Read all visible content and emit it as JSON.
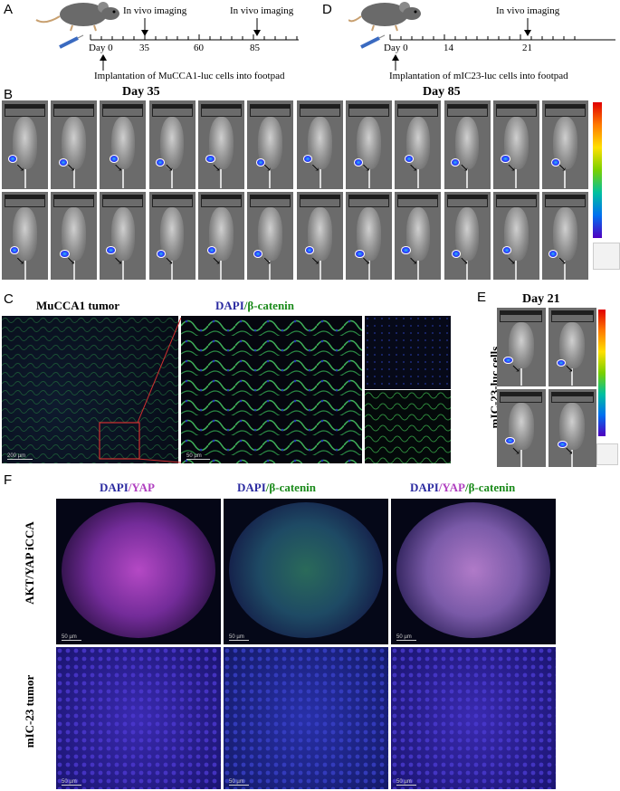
{
  "panels": {
    "A": "A",
    "B": "B",
    "C": "C",
    "D": "D",
    "E": "E",
    "F": "F"
  },
  "timelineA": {
    "ticks": [
      "Day 0",
      "35",
      "60",
      "85"
    ],
    "imaging1": "In vivo imaging",
    "imaging2": "In vivo imaging",
    "implant": "Implantation of MuCCA1-luc cells into footpad"
  },
  "timelineD": {
    "ticks": [
      "Day 0",
      "14",
      "21"
    ],
    "imaging": "In vivo imaging",
    "implant": "Implantation of mIC23-luc cells into footpad"
  },
  "panelB": {
    "left_title": "Day 35",
    "right_title": "Day 85"
  },
  "panelC": {
    "title_left": "MuCCA1 tumor",
    "title_dapi": "DAPI",
    "title_sep": "/",
    "title_bcat": "β-catenin",
    "scale1": "200 µm",
    "scale2": "50 µm"
  },
  "panelE": {
    "title": "Day 21",
    "side": "mIC-23-luc cells"
  },
  "panelF": {
    "col1_dapi": "DAPI",
    "col1_sep": "/",
    "col1_yap": "YAP",
    "col2_dapi": "DAPI",
    "col2_sep": "/",
    "col2_bcat": "β-catenin",
    "col3_dapi": "DAPI",
    "col3_sep1": "/",
    "col3_yap": "YAP",
    "col3_sep2": "/",
    "col3_bcat": "β-catenin",
    "row1": "AKT/YAP iCCA",
    "row2": "mIC-23 tumor",
    "scale": "50 µm"
  }
}
